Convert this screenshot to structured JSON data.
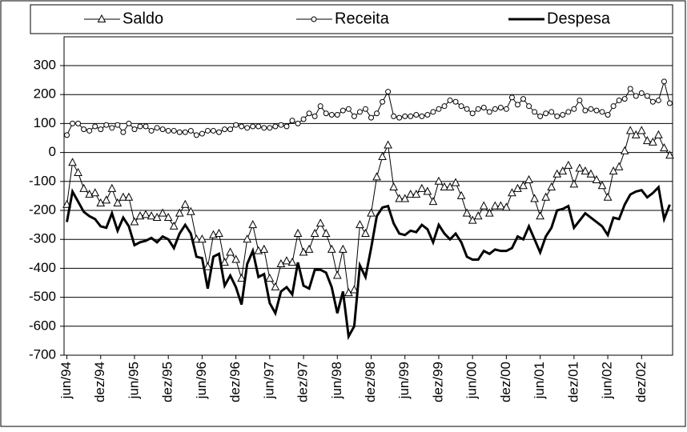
{
  "chart_data": {
    "type": "line",
    "categories": [
      "jun/94",
      null,
      null,
      null,
      null,
      null,
      "dez/94",
      null,
      null,
      null,
      null,
      null,
      "jun/95",
      null,
      null,
      null,
      null,
      null,
      "dez/95",
      null,
      null,
      null,
      null,
      null,
      "jun/96",
      null,
      null,
      null,
      null,
      null,
      "dez/96",
      null,
      null,
      null,
      null,
      null,
      "jun/97",
      null,
      null,
      null,
      null,
      null,
      "dez/97",
      null,
      null,
      null,
      null,
      null,
      "jun/98",
      null,
      null,
      null,
      null,
      null,
      "dez/98",
      null,
      null,
      null,
      null,
      null,
      "jun/99",
      null,
      null,
      null,
      null,
      null,
      "dez/99",
      null,
      null,
      null,
      null,
      null,
      "jun/00",
      null,
      null,
      null,
      null,
      null,
      "dez/00",
      null,
      null,
      null,
      null,
      null,
      "jun/01",
      null,
      null,
      null,
      null,
      null,
      "dez/01",
      null,
      null,
      null,
      null,
      null,
      "jun/02",
      null,
      null,
      null,
      null,
      null,
      "dez/02",
      null,
      null,
      null,
      null,
      null
    ],
    "series": [
      {
        "name": "Saldo",
        "color": "#000000",
        "marker": "triangle",
        "line_width": 1,
        "values": [
          -180,
          -35,
          -70,
          -125,
          -145,
          -140,
          -175,
          -165,
          -125,
          -175,
          -155,
          -155,
          -240,
          -220,
          -215,
          -220,
          -225,
          -210,
          -225,
          -255,
          -210,
          -180,
          -205,
          -300,
          -300,
          -395,
          -285,
          -280,
          -380,
          -345,
          -370,
          -435,
          -300,
          -250,
          -340,
          -335,
          -435,
          -465,
          -385,
          -375,
          -380,
          -280,
          -345,
          -335,
          -280,
          -245,
          -280,
          -335,
          -425,
          -335,
          -485,
          -475,
          -250,
          -280,
          -210,
          -85,
          -15,
          25,
          -120,
          -160,
          -160,
          -145,
          -145,
          -125,
          -135,
          -170,
          -100,
          -120,
          -120,
          -105,
          -150,
          -210,
          -235,
          -220,
          -185,
          -210,
          -185,
          -185,
          -190,
          -140,
          -125,
          -115,
          -95,
          -160,
          -220,
          -155,
          -120,
          -75,
          -65,
          -45,
          -110,
          -55,
          -65,
          -75,
          -95,
          -115,
          -155,
          -65,
          -50,
          5,
          75,
          60,
          75,
          40,
          35,
          60,
          15,
          -10
        ]
      },
      {
        "name": "Receita",
        "color": "#000000",
        "marker": "circle",
        "line_width": 1,
        "values": [
          60,
          100,
          100,
          80,
          75,
          90,
          80,
          95,
          85,
          95,
          70,
          100,
          80,
          90,
          90,
          75,
          85,
          80,
          75,
          75,
          70,
          70,
          75,
          60,
          65,
          75,
          75,
          70,
          80,
          80,
          95,
          90,
          85,
          90,
          90,
          85,
          85,
          90,
          95,
          90,
          110,
          100,
          115,
          135,
          125,
          160,
          135,
          130,
          130,
          145,
          150,
          125,
          140,
          150,
          120,
          135,
          175,
          210,
          125,
          120,
          125,
          125,
          130,
          125,
          130,
          140,
          150,
          160,
          180,
          175,
          160,
          150,
          135,
          150,
          155,
          140,
          150,
          155,
          150,
          190,
          165,
          185,
          160,
          140,
          125,
          135,
          140,
          125,
          130,
          140,
          150,
          180,
          145,
          150,
          145,
          140,
          130,
          160,
          180,
          185,
          220,
          195,
          205,
          195,
          175,
          180,
          245,
          170
        ]
      },
      {
        "name": "Despesa",
        "color": "#000000",
        "marker": "none",
        "line_width": 3,
        "values": [
          -240,
          -135,
          -170,
          -205,
          -220,
          -230,
          -255,
          -260,
          -210,
          -270,
          -225,
          -255,
          -320,
          -310,
          -305,
          -295,
          -310,
          -290,
          -300,
          -330,
          -280,
          -250,
          -280,
          -360,
          -365,
          -470,
          -360,
          -350,
          -460,
          -425,
          -465,
          -525,
          -385,
          -340,
          -430,
          -420,
          -520,
          -555,
          -480,
          -465,
          -490,
          -380,
          -460,
          -470,
          -405,
          -405,
          -415,
          -465,
          -555,
          -480,
          -635,
          -600,
          -390,
          -430,
          -330,
          -220,
          -190,
          -185,
          -245,
          -280,
          -285,
          -270,
          -275,
          -250,
          -265,
          -310,
          -250,
          -280,
          -300,
          -280,
          -310,
          -360,
          -370,
          -370,
          -340,
          -350,
          -335,
          -340,
          -340,
          -330,
          -290,
          -300,
          -255,
          -300,
          -345,
          -290,
          -260,
          -200,
          -195,
          -185,
          -260,
          -235,
          -210,
          -225,
          -240,
          -255,
          -285,
          -225,
          -230,
          -180,
          -145,
          -135,
          -130,
          -155,
          -140,
          -120,
          -230,
          -180
        ]
      }
    ],
    "ylim": [
      -700,
      300
    ],
    "yticks": [
      -700,
      -600,
      -500,
      -400,
      -300,
      -200,
      -100,
      0,
      100,
      200,
      300
    ],
    "grid": true,
    "legend": "top"
  }
}
